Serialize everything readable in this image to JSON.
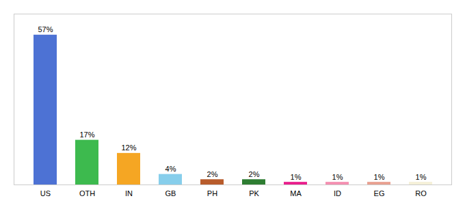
{
  "chart_data": {
    "type": "bar",
    "categories": [
      "US",
      "OTH",
      "IN",
      "GB",
      "PH",
      "PK",
      "MA",
      "ID",
      "EG",
      "RO"
    ],
    "values": [
      57,
      17,
      12,
      4,
      2,
      2,
      1,
      1,
      1,
      1
    ],
    "value_labels": [
      "57%",
      "17%",
      "12%",
      "4%",
      "2%",
      "2%",
      "1%",
      "1%",
      "1%",
      "1%"
    ],
    "colors": [
      "#4d72d4",
      "#3dba4e",
      "#f5a623",
      "#87ceeb",
      "#b85c2c",
      "#2e7d32",
      "#e91e8c",
      "#f48fb1",
      "#e8a090",
      "#f5f0d8"
    ],
    "ylim": [
      0,
      65
    ],
    "data_labels": true,
    "tick_labels": "x",
    "grid": false
  }
}
